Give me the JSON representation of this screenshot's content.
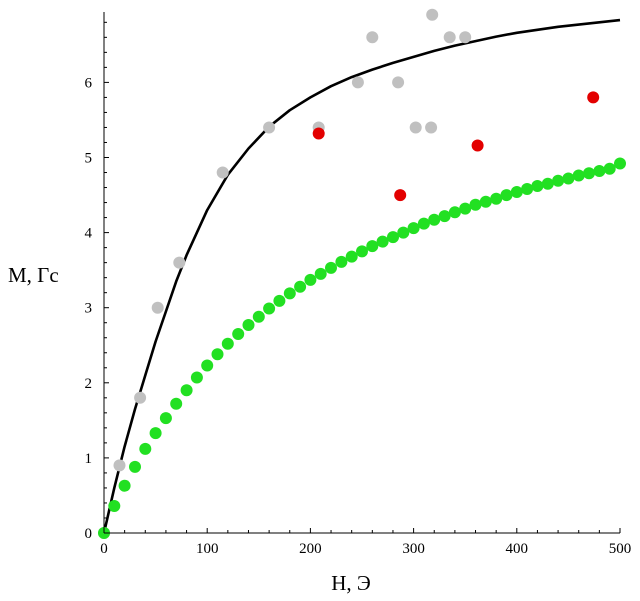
{
  "chart_data": {
    "type": "scatter",
    "xlabel": "H, Э",
    "ylabel": "M, Гс",
    "xlim": [
      0,
      500
    ],
    "ylim": [
      0,
      6.9
    ],
    "x_ticks": [
      0,
      100,
      200,
      300,
      400,
      500
    ],
    "y_ticks": [
      0,
      1,
      2,
      3,
      4,
      5,
      6
    ],
    "grid": false,
    "legend": "none",
    "series": [
      {
        "kind": "line",
        "color": "#000000",
        "x": [
          0,
          10,
          20,
          30,
          40,
          50,
          60,
          70,
          80,
          90,
          100,
          120,
          140,
          160,
          180,
          200,
          220,
          240,
          260,
          280,
          300,
          320,
          340,
          360,
          380,
          400,
          420,
          440,
          460,
          480,
          500
        ],
        "y": [
          0,
          0.6,
          1.15,
          1.65,
          2.1,
          2.55,
          2.95,
          3.35,
          3.7,
          4.0,
          4.3,
          4.77,
          5.12,
          5.41,
          5.63,
          5.8,
          5.95,
          6.07,
          6.17,
          6.26,
          6.34,
          6.42,
          6.49,
          6.55,
          6.61,
          6.66,
          6.7,
          6.74,
          6.77,
          6.8,
          6.83
        ]
      },
      {
        "kind": "points",
        "color": "#c0c0c0",
        "x": [
          0,
          15,
          35,
          52,
          73,
          115,
          160,
          208,
          246,
          260,
          285,
          302,
          317,
          318,
          335,
          350
        ],
        "y": [
          0,
          0.9,
          1.8,
          3.0,
          3.6,
          4.8,
          5.4,
          5.4,
          6.0,
          6.6,
          6.0,
          5.4,
          5.4,
          6.9,
          6.6,
          6.6
        ]
      },
      {
        "kind": "points",
        "color": "#e30000",
        "x": [
          208,
          287,
          362,
          474
        ],
        "y": [
          5.32,
          4.5,
          5.16,
          5.8
        ]
      },
      {
        "kind": "points",
        "color": "#22e022",
        "x": [
          0,
          10,
          20,
          30,
          40,
          50,
          60,
          70,
          80,
          90,
          100,
          110,
          120,
          130,
          140,
          150,
          160,
          170,
          180,
          190,
          200,
          210,
          220,
          230,
          240,
          250,
          260,
          270,
          280,
          290,
          300,
          310,
          320,
          330,
          340,
          350,
          360,
          370,
          380,
          390,
          400,
          410,
          420,
          430,
          440,
          450,
          460,
          470,
          480,
          490,
          500
        ],
        "y": [
          0,
          0.36,
          0.63,
          0.88,
          1.12,
          1.33,
          1.53,
          1.72,
          1.9,
          2.07,
          2.23,
          2.38,
          2.52,
          2.65,
          2.77,
          2.88,
          2.99,
          3.09,
          3.19,
          3.28,
          3.37,
          3.45,
          3.53,
          3.61,
          3.68,
          3.75,
          3.82,
          3.88,
          3.94,
          4.0,
          4.06,
          4.12,
          4.17,
          4.22,
          4.27,
          4.32,
          4.37,
          4.41,
          4.45,
          4.5,
          4.54,
          4.58,
          4.62,
          4.65,
          4.69,
          4.72,
          4.76,
          4.79,
          4.82,
          4.85,
          4.92
        ]
      }
    ]
  }
}
